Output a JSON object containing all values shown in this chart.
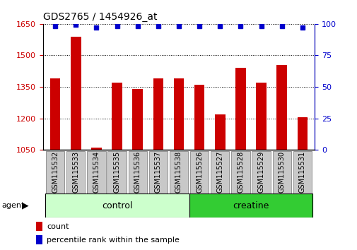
{
  "title": "GDS2765 / 1454926_at",
  "categories": [
    "GSM115532",
    "GSM115533",
    "GSM115534",
    "GSM115535",
    "GSM115536",
    "GSM115537",
    "GSM115538",
    "GSM115526",
    "GSM115527",
    "GSM115528",
    "GSM115529",
    "GSM115530",
    "GSM115531"
  ],
  "bar_values": [
    1390,
    1590,
    1062,
    1370,
    1340,
    1390,
    1390,
    1360,
    1218,
    1440,
    1370,
    1455,
    1205
  ],
  "percentile_values": [
    98,
    99,
    97,
    98,
    98,
    98,
    98,
    98,
    98,
    98,
    98,
    98,
    97
  ],
  "bar_color": "#cc0000",
  "dot_color": "#0000cc",
  "ylim_left": [
    1050,
    1650
  ],
  "ylim_right": [
    0,
    100
  ],
  "yticks_left": [
    1050,
    1200,
    1350,
    1500,
    1650
  ],
  "yticks_right": [
    0,
    25,
    50,
    75,
    100
  ],
  "control_group_count": 7,
  "creatine_group_count": 6,
  "control_color": "#ccffcc",
  "creatine_color": "#33cc33",
  "agent_label": "agent",
  "control_label": "control",
  "creatine_label": "creatine",
  "legend_count_label": "count",
  "legend_pct_label": "percentile rank within the sample",
  "bar_color_left": "#cc0000",
  "dot_color_right": "#0000cc",
  "bar_width": 0.5,
  "xticklabel_fontsize": 7,
  "yticklabel_fontsize": 8,
  "title_fontsize": 10,
  "grey_box_color": "#c8c8c8",
  "grey_box_edge": "#888888"
}
